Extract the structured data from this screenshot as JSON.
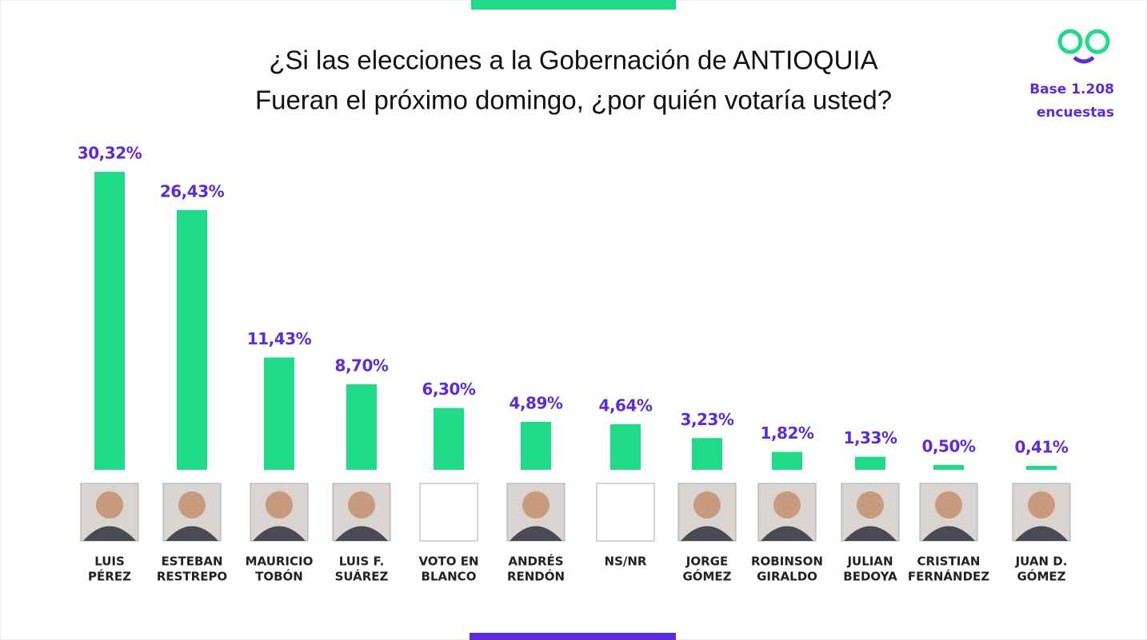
{
  "chart_data": {
    "type": "bar",
    "title": [
      "¿Si las elecciones a la Gobernación de ANTIOQUIA",
      "Fueran el próximo domingo, ¿por quién votaría usted?"
    ],
    "note": [
      "Base 1.208",
      "encuestas"
    ],
    "categories": [
      [
        "LUIS",
        "PÉREZ"
      ],
      [
        "ESTEBAN",
        "RESTREPO"
      ],
      [
        "MAURICIO",
        "TOBÓN"
      ],
      [
        "LUIS F.",
        "SUÁREZ"
      ],
      [
        "VOTO EN",
        "BLANCO"
      ],
      [
        "ANDRÉS",
        "RENDÓN"
      ],
      [
        "NS/NR"
      ],
      [
        "JORGE",
        "GÓMEZ"
      ],
      [
        "ROBINSON",
        "GIRALDO"
      ],
      [
        "JULIAN",
        "BEDOYA"
      ],
      [
        "CRISTIAN",
        "FERNÁNDEZ"
      ],
      [
        "JUAN D.",
        "GÓMEZ"
      ]
    ],
    "values": [
      30.32,
      26.43,
      11.43,
      8.7,
      6.3,
      4.89,
      4.64,
      3.23,
      1.82,
      1.33,
      0.5,
      0.41
    ],
    "value_labels": [
      "30,32%",
      "26,43%",
      "11,43%",
      "8,70%",
      "6,30%",
      "4,89%",
      "4,64%",
      "3,23%",
      "1,82%",
      "1,33%",
      "0,50%",
      "0,41%"
    ],
    "color": "#1edb87",
    "label_color": "#5b2be0"
  }
}
